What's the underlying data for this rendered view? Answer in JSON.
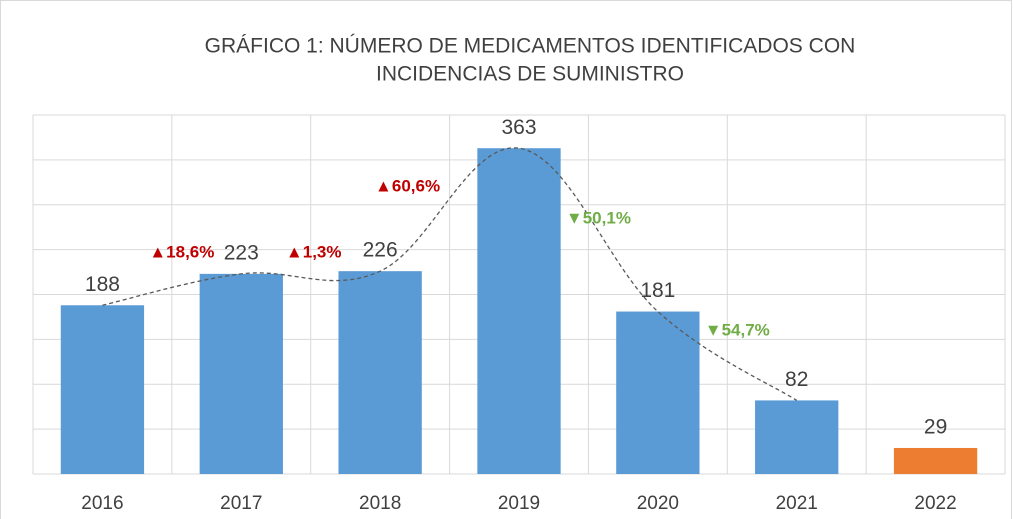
{
  "chart_data": {
    "type": "bar",
    "title": [
      "GRÁFICO 1: NÚMERO DE MEDICAMENTOS IDENTIFICADOS CON",
      "INCIDENCIAS  DE SUMINISTRO"
    ],
    "categories": [
      "2016",
      "2017",
      "2018",
      "2019",
      "2020",
      "2021",
      "2022"
    ],
    "values": [
      188,
      223,
      226,
      363,
      181,
      82,
      29
    ],
    "colors": [
      "#5b9bd5",
      "#5b9bd5",
      "#5b9bd5",
      "#5b9bd5",
      "#5b9bd5",
      "#5b9bd5",
      "#ed7d31"
    ],
    "ylim": [
      0,
      400
    ],
    "yticks": [
      0,
      50,
      100,
      150,
      200,
      250,
      300,
      350,
      400
    ],
    "grid": true,
    "annotations": [
      {
        "text": "▲18,6%",
        "color": "#c00000"
      },
      {
        "text": "▲1,3%",
        "color": "#c00000"
      },
      {
        "text": "▲60,6%",
        "color": "#c00000"
      },
      {
        "text": "▼50,1%",
        "color": "#70ad47"
      },
      {
        "text": "▼54,7%",
        "color": "#70ad47"
      }
    ]
  }
}
